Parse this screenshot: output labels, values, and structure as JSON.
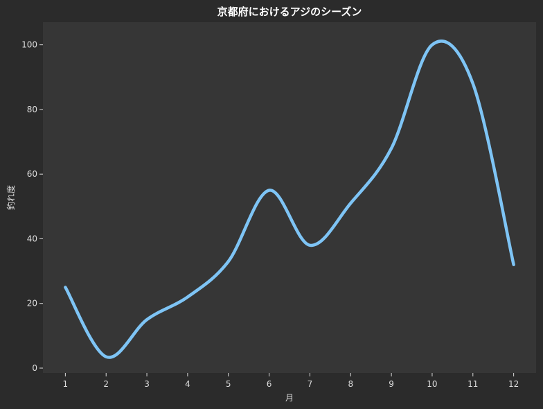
{
  "chart_data": {
    "type": "line",
    "title": "京都府におけるアジのシーズン",
    "xlabel": "月",
    "ylabel": "釣れ度",
    "x": [
      1,
      2,
      3,
      4,
      5,
      6,
      7,
      8,
      9,
      10,
      11,
      12
    ],
    "series": [
      {
        "values": [
          25,
          3.5,
          15,
          22,
          33,
          55,
          38,
          51,
          68,
          100,
          88,
          32
        ]
      }
    ],
    "xlim": [
      0.45,
      12.55
    ],
    "ylim": [
      -1.5,
      107
    ],
    "yticks": [
      0,
      20,
      40,
      60,
      80,
      100
    ],
    "grid": false,
    "smooth": true,
    "colors": {
      "background": "#2b2b2b",
      "plot_area": "#363636",
      "line": "#7ec4f5",
      "text": "#dddddd",
      "title": "#ffffff"
    }
  }
}
